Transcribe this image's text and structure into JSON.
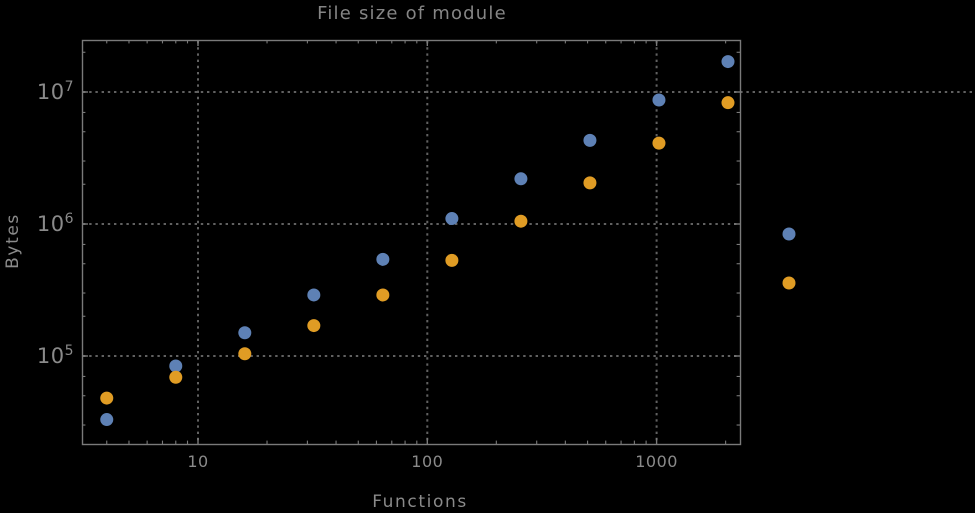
{
  "chart_data": {
    "type": "scatter",
    "title": "File size of module",
    "xlabel": "Functions",
    "ylabel": "Bytes",
    "xscale": "log",
    "yscale": "log",
    "xlim": [
      3.2,
      2300
    ],
    "ylim": [
      21500,
      24800000
    ],
    "grid": true,
    "grid_style": "dotted",
    "legend_position": "right-of-plot-middle",
    "x_major_ticks": [
      10,
      100,
      1000
    ],
    "x_tick_labels": [
      "10",
      "100",
      "1000"
    ],
    "x_minor_mults": [
      2,
      3,
      4,
      5,
      6,
      7,
      8,
      9
    ],
    "y_major_ticks": [
      100000,
      1000000,
      10000000
    ],
    "y_tick_base": "10",
    "y_tick_exponents": [
      "5",
      "6",
      "7"
    ],
    "y_minor_mults": [
      2,
      3,
      5,
      7
    ],
    "y_grid_extends_right": [
      10000000
    ],
    "x": [
      4,
      8,
      16,
      32,
      64,
      128,
      256,
      512,
      1024,
      2048
    ],
    "series": [
      {
        "name": "series-1-blue",
        "color": "#5e81b5",
        "marker": "circle",
        "values": [
          33000,
          84000,
          150000,
          290000,
          540000,
          1100000,
          2200000,
          4300000,
          8700000,
          17000000
        ]
      },
      {
        "name": "series-2-orange",
        "color": "#e09c24",
        "marker": "circle",
        "values": [
          48000,
          69000,
          104000,
          170000,
          290000,
          530000,
          1050000,
          2050000,
          4100000,
          8300000
        ]
      }
    ],
    "legend": {
      "entries": [
        {
          "series": "series-1-blue",
          "label": "",
          "color": "#5e81b5"
        },
        {
          "series": "series-2-orange",
          "label": "",
          "color": "#e09c24"
        }
      ]
    }
  },
  "colors": {
    "background": "#000000",
    "frame": "#7a7a7a",
    "grid": "#616161",
    "text": "#8a8a8a"
  }
}
